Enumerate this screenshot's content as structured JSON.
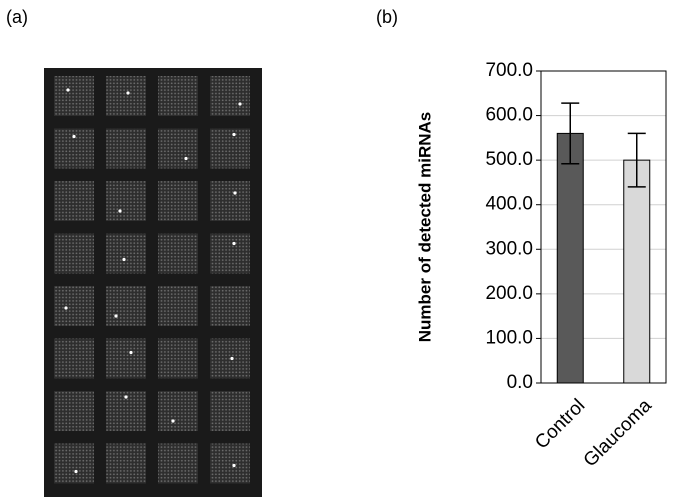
{
  "panels": {
    "a": "(a)",
    "b": "(b)"
  },
  "chart_data": {
    "type": "bar",
    "ylabel": "Number of detected miRNAs",
    "categories": [
      "Control",
      "Glaucoma"
    ],
    "values": [
      560,
      500
    ],
    "errors": [
      68,
      60
    ],
    "colors": [
      "#595959",
      "#d9d9d9"
    ],
    "ylim": [
      0,
      700
    ],
    "yticks": [
      {
        "value": 0,
        "label": "0.0"
      },
      {
        "value": 100,
        "label": "100.0"
      },
      {
        "value": 200,
        "label": "200.0"
      },
      {
        "value": 300,
        "label": "300.0"
      },
      {
        "value": 400,
        "label": "400.0"
      },
      {
        "value": 500,
        "label": "500.0"
      },
      {
        "value": 600,
        "label": "600.0"
      },
      {
        "value": 700,
        "label": "700.0"
      }
    ],
    "grid": true
  }
}
